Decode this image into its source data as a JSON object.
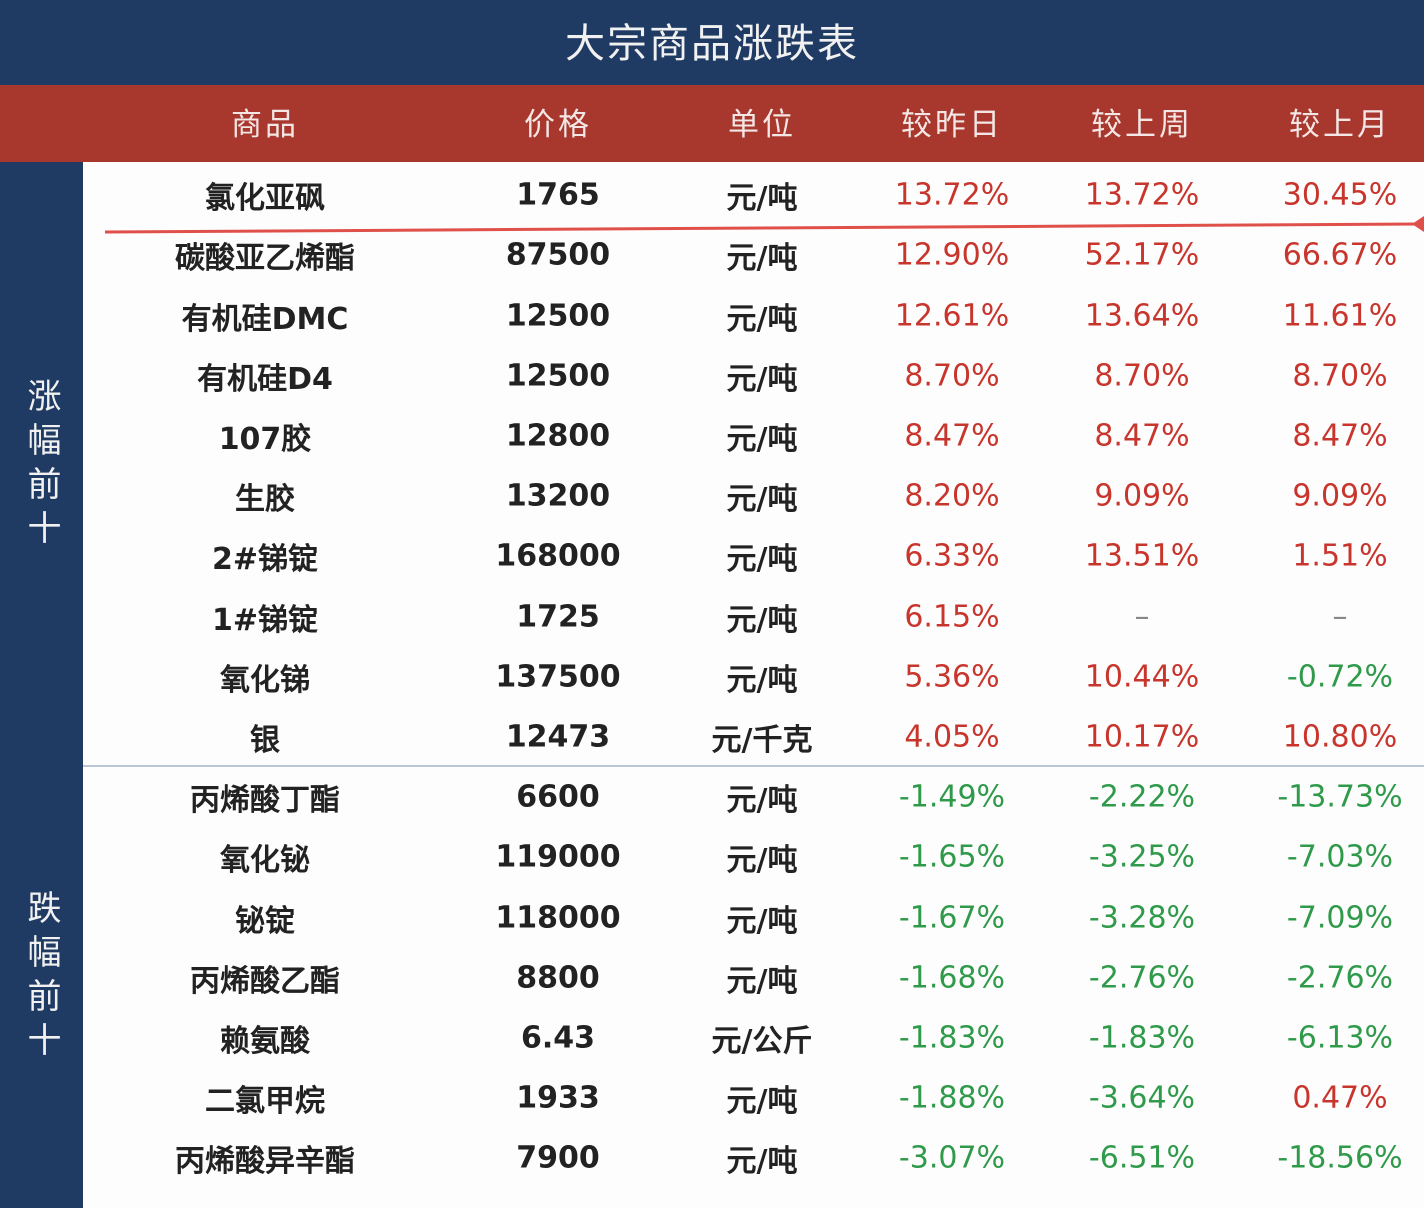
{
  "title": "大宗商品涨跌表",
  "columns": [
    "商品",
    "价格",
    "单位",
    "较昨日",
    "较上周",
    "较上月"
  ],
  "groups": [
    {
      "label": "涨幅前十",
      "rows": [
        [
          "氯化亚砜",
          "1765",
          "元/吨",
          "13.72%",
          "13.72%",
          "30.45%"
        ],
        [
          "碳酸亚乙烯酯",
          "87500",
          "元/吨",
          "12.90%",
          "52.17%",
          "66.67%"
        ],
        [
          "有机硅DMC",
          "12500",
          "元/吨",
          "12.61%",
          "13.64%",
          "11.61%"
        ],
        [
          "有机硅D4",
          "12500",
          "元/吨",
          "8.70%",
          "8.70%",
          "8.70%"
        ],
        [
          "107胶",
          "12800",
          "元/吨",
          "8.47%",
          "8.47%",
          "8.47%"
        ],
        [
          "生胶",
          "13200",
          "元/吨",
          "8.20%",
          "9.09%",
          "9.09%"
        ],
        [
          "2#锑锭",
          "168000",
          "元/吨",
          "6.33%",
          "13.51%",
          "1.51%"
        ],
        [
          "1#锑锭",
          "1725",
          "元/吨",
          "6.15%",
          "–",
          "–"
        ],
        [
          "氧化锑",
          "137500",
          "元/吨",
          "5.36%",
          "10.44%",
          "-0.72%"
        ],
        [
          "银",
          "12473",
          "元/千克",
          "4.05%",
          "10.17%",
          "10.80%"
        ]
      ]
    },
    {
      "label": "跌幅前十",
      "rows": [
        [
          "丙烯酸丁酯",
          "6600",
          "元/吨",
          "-1.49%",
          "-2.22%",
          "-13.73%"
        ],
        [
          "氧化铋",
          "119000",
          "元/吨",
          "-1.65%",
          "-3.25%",
          "-7.03%"
        ],
        [
          "铋锭",
          "118000",
          "元/吨",
          "-1.67%",
          "-3.28%",
          "-7.09%"
        ],
        [
          "丙烯酸乙酯",
          "8800",
          "元/吨",
          "-1.68%",
          "-2.76%",
          "-2.76%"
        ],
        [
          "赖氨酸",
          "6.43",
          "元/公斤",
          "-1.83%",
          "-1.83%",
          "-6.13%"
        ],
        [
          "二氯甲烷",
          "1933",
          "元/吨",
          "-1.88%",
          "-3.64%",
          "0.47%"
        ],
        [
          "丙烯酸异辛酯",
          "7900",
          "元/吨",
          "-3.07%",
          "-6.51%",
          "-18.56%"
        ]
      ]
    }
  ]
}
